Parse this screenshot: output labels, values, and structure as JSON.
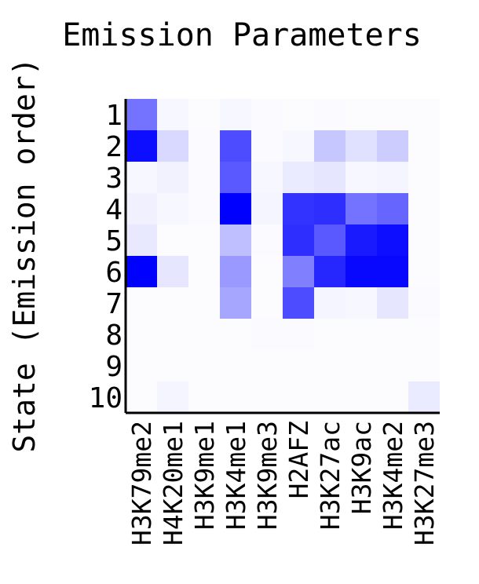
{
  "chart_data": {
    "type": "heatmap",
    "title": "Emission Parameters",
    "ylabel": "State (Emission order)",
    "xlabel": "",
    "colors": {
      "high": "#0000ff",
      "low": "#ffffff"
    },
    "rows": [
      "1",
      "2",
      "3",
      "4",
      "5",
      "6",
      "7",
      "8",
      "9",
      "10"
    ],
    "columns": [
      "H3K79me2",
      "H4K20me1",
      "H3K9me1",
      "H3K4me1",
      "H3K9me3",
      "H2AFZ",
      "H3K27ac",
      "H3K9ac",
      "H3K4me2",
      "H3K27me3"
    ],
    "values": [
      [
        0.55,
        0.03,
        0.01,
        0.03,
        0.02,
        0.01,
        0.02,
        0.01,
        0.01,
        0.01
      ],
      [
        0.95,
        0.15,
        0.02,
        0.7,
        0.02,
        0.03,
        0.22,
        0.12,
        0.2,
        0.01
      ],
      [
        0.03,
        0.05,
        0.02,
        0.65,
        0.03,
        0.08,
        0.1,
        0.03,
        0.04,
        0.01
      ],
      [
        0.06,
        0.03,
        0.02,
        1.0,
        0.04,
        0.8,
        0.82,
        0.55,
        0.6,
        0.01
      ],
      [
        0.09,
        0.01,
        0.01,
        0.25,
        0.02,
        0.82,
        0.65,
        0.9,
        0.95,
        0.01
      ],
      [
        1.0,
        0.1,
        0.01,
        0.4,
        0.01,
        0.5,
        0.85,
        0.97,
        0.97,
        0.01
      ],
      [
        0.01,
        0.01,
        0.01,
        0.35,
        0.01,
        0.7,
        0.04,
        0.03,
        0.1,
        0.02
      ],
      [
        0.01,
        0.01,
        0.01,
        0.01,
        0.02,
        0.02,
        0.01,
        0.01,
        0.01,
        0.01
      ],
      [
        0.01,
        0.01,
        0.01,
        0.01,
        0.01,
        0.01,
        0.01,
        0.01,
        0.01,
        0.01
      ],
      [
        0.01,
        0.04,
        0.01,
        0.01,
        0.01,
        0.01,
        0.01,
        0.01,
        0.01,
        0.08
      ]
    ]
  }
}
